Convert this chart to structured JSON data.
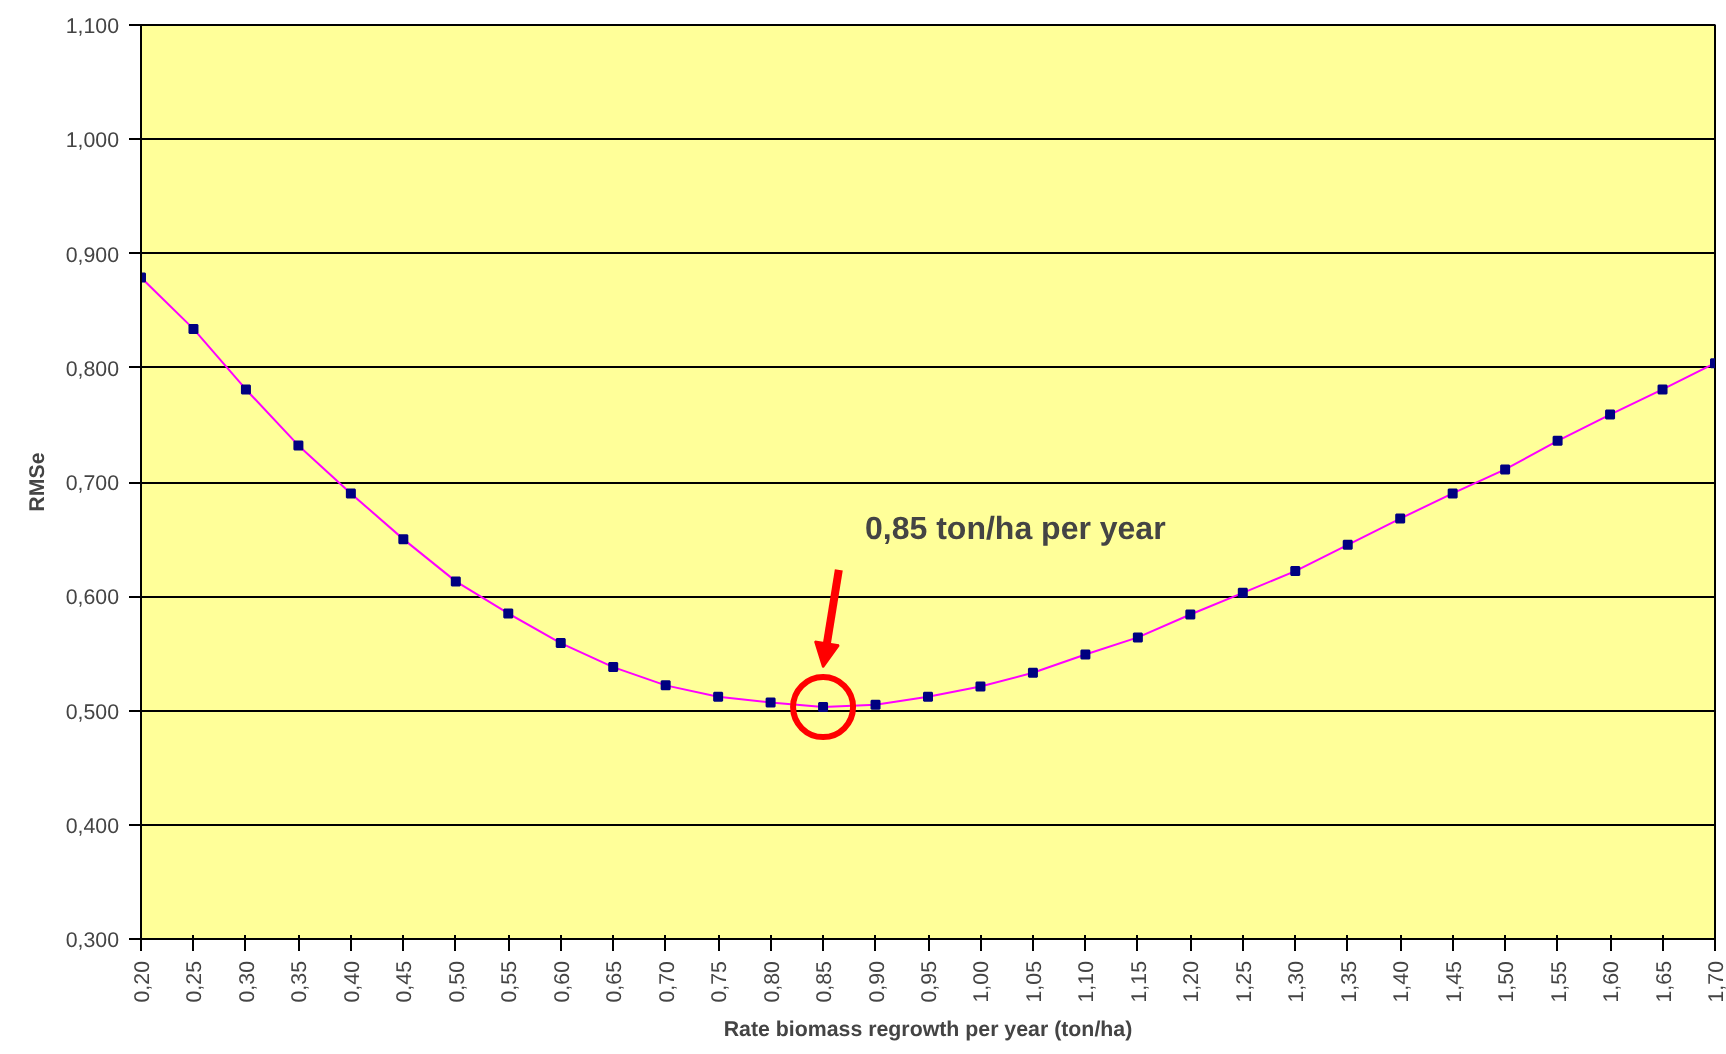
{
  "chart_data": {
    "type": "line",
    "xlabel": "Rate biomass regrowth per year (ton/ha)",
    "ylabel": "RMSe",
    "x": [
      0.2,
      0.25,
      0.3,
      0.35,
      0.4,
      0.45,
      0.5,
      0.55,
      0.6,
      0.65,
      0.7,
      0.75,
      0.8,
      0.85,
      0.9,
      0.95,
      1.0,
      1.05,
      1.1,
      1.15,
      1.2,
      1.25,
      1.3,
      1.35,
      1.4,
      1.45,
      1.5,
      1.55,
      1.6,
      1.65,
      1.7
    ],
    "series": [
      {
        "color": "#ff00ff",
        "values": [
          0.879,
          0.834,
          0.781,
          0.732,
          0.69,
          0.65,
          0.613,
          0.585,
          0.559,
          0.538,
          0.522,
          0.512,
          0.507,
          0.503,
          0.505,
          0.512,
          0.521,
          0.533,
          0.549,
          0.564,
          0.584,
          0.603,
          0.622,
          0.645,
          0.668,
          0.69,
          0.711,
          0.736,
          0.759,
          0.781,
          0.804
        ]
      }
    ],
    "marker": "square",
    "line_style": "solid",
    "grid": "y",
    "xlim": [
      0.2,
      1.7
    ],
    "xticks": [
      {
        "value": 0.2,
        "label": "0,20"
      },
      {
        "value": 0.25,
        "label": "0,25"
      },
      {
        "value": 0.3,
        "label": "0,30"
      },
      {
        "value": 0.35,
        "label": "0,35"
      },
      {
        "value": 0.4,
        "label": "0,40"
      },
      {
        "value": 0.45,
        "label": "0,45"
      },
      {
        "value": 0.5,
        "label": "0,50"
      },
      {
        "value": 0.55,
        "label": "0,55"
      },
      {
        "value": 0.6,
        "label": "0,60"
      },
      {
        "value": 0.65,
        "label": "0,65"
      },
      {
        "value": 0.7,
        "label": "0,70"
      },
      {
        "value": 0.75,
        "label": "0,75"
      },
      {
        "value": 0.8,
        "label": "0,80"
      },
      {
        "value": 0.85,
        "label": "0,85"
      },
      {
        "value": 0.9,
        "label": "0,90"
      },
      {
        "value": 0.95,
        "label": "0,95"
      },
      {
        "value": 1.0,
        "label": "1,00"
      },
      {
        "value": 1.05,
        "label": "1,05"
      },
      {
        "value": 1.1,
        "label": "1,10"
      },
      {
        "value": 1.15,
        "label": "1,15"
      },
      {
        "value": 1.2,
        "label": "1,20"
      },
      {
        "value": 1.25,
        "label": "1,25"
      },
      {
        "value": 1.3,
        "label": "1,30"
      },
      {
        "value": 1.35,
        "label": "1,35"
      },
      {
        "value": 1.4,
        "label": "1,40"
      },
      {
        "value": 1.45,
        "label": "1,45"
      },
      {
        "value": 1.5,
        "label": "1,50"
      },
      {
        "value": 1.55,
        "label": "1,55"
      },
      {
        "value": 1.6,
        "label": "1,60"
      },
      {
        "value": 1.65,
        "label": "1,65"
      },
      {
        "value": 1.7,
        "label": "1,70"
      }
    ],
    "ylim": [
      0.3,
      1.1
    ],
    "yticks": [
      {
        "value": 0.3,
        "label": "0,300"
      },
      {
        "value": 0.4,
        "label": "0,400"
      },
      {
        "value": 0.5,
        "label": "0,500"
      },
      {
        "value": 0.6,
        "label": "0,600"
      },
      {
        "value": 0.7,
        "label": "0,700"
      },
      {
        "value": 0.8,
        "label": "0,800"
      },
      {
        "value": 0.9,
        "label": "0,900"
      },
      {
        "value": 1.0,
        "label": "1,000"
      },
      {
        "value": 1.1,
        "label": "1,100"
      }
    ],
    "annotations": [
      "0,85 ton/ha per year"
    ]
  }
}
